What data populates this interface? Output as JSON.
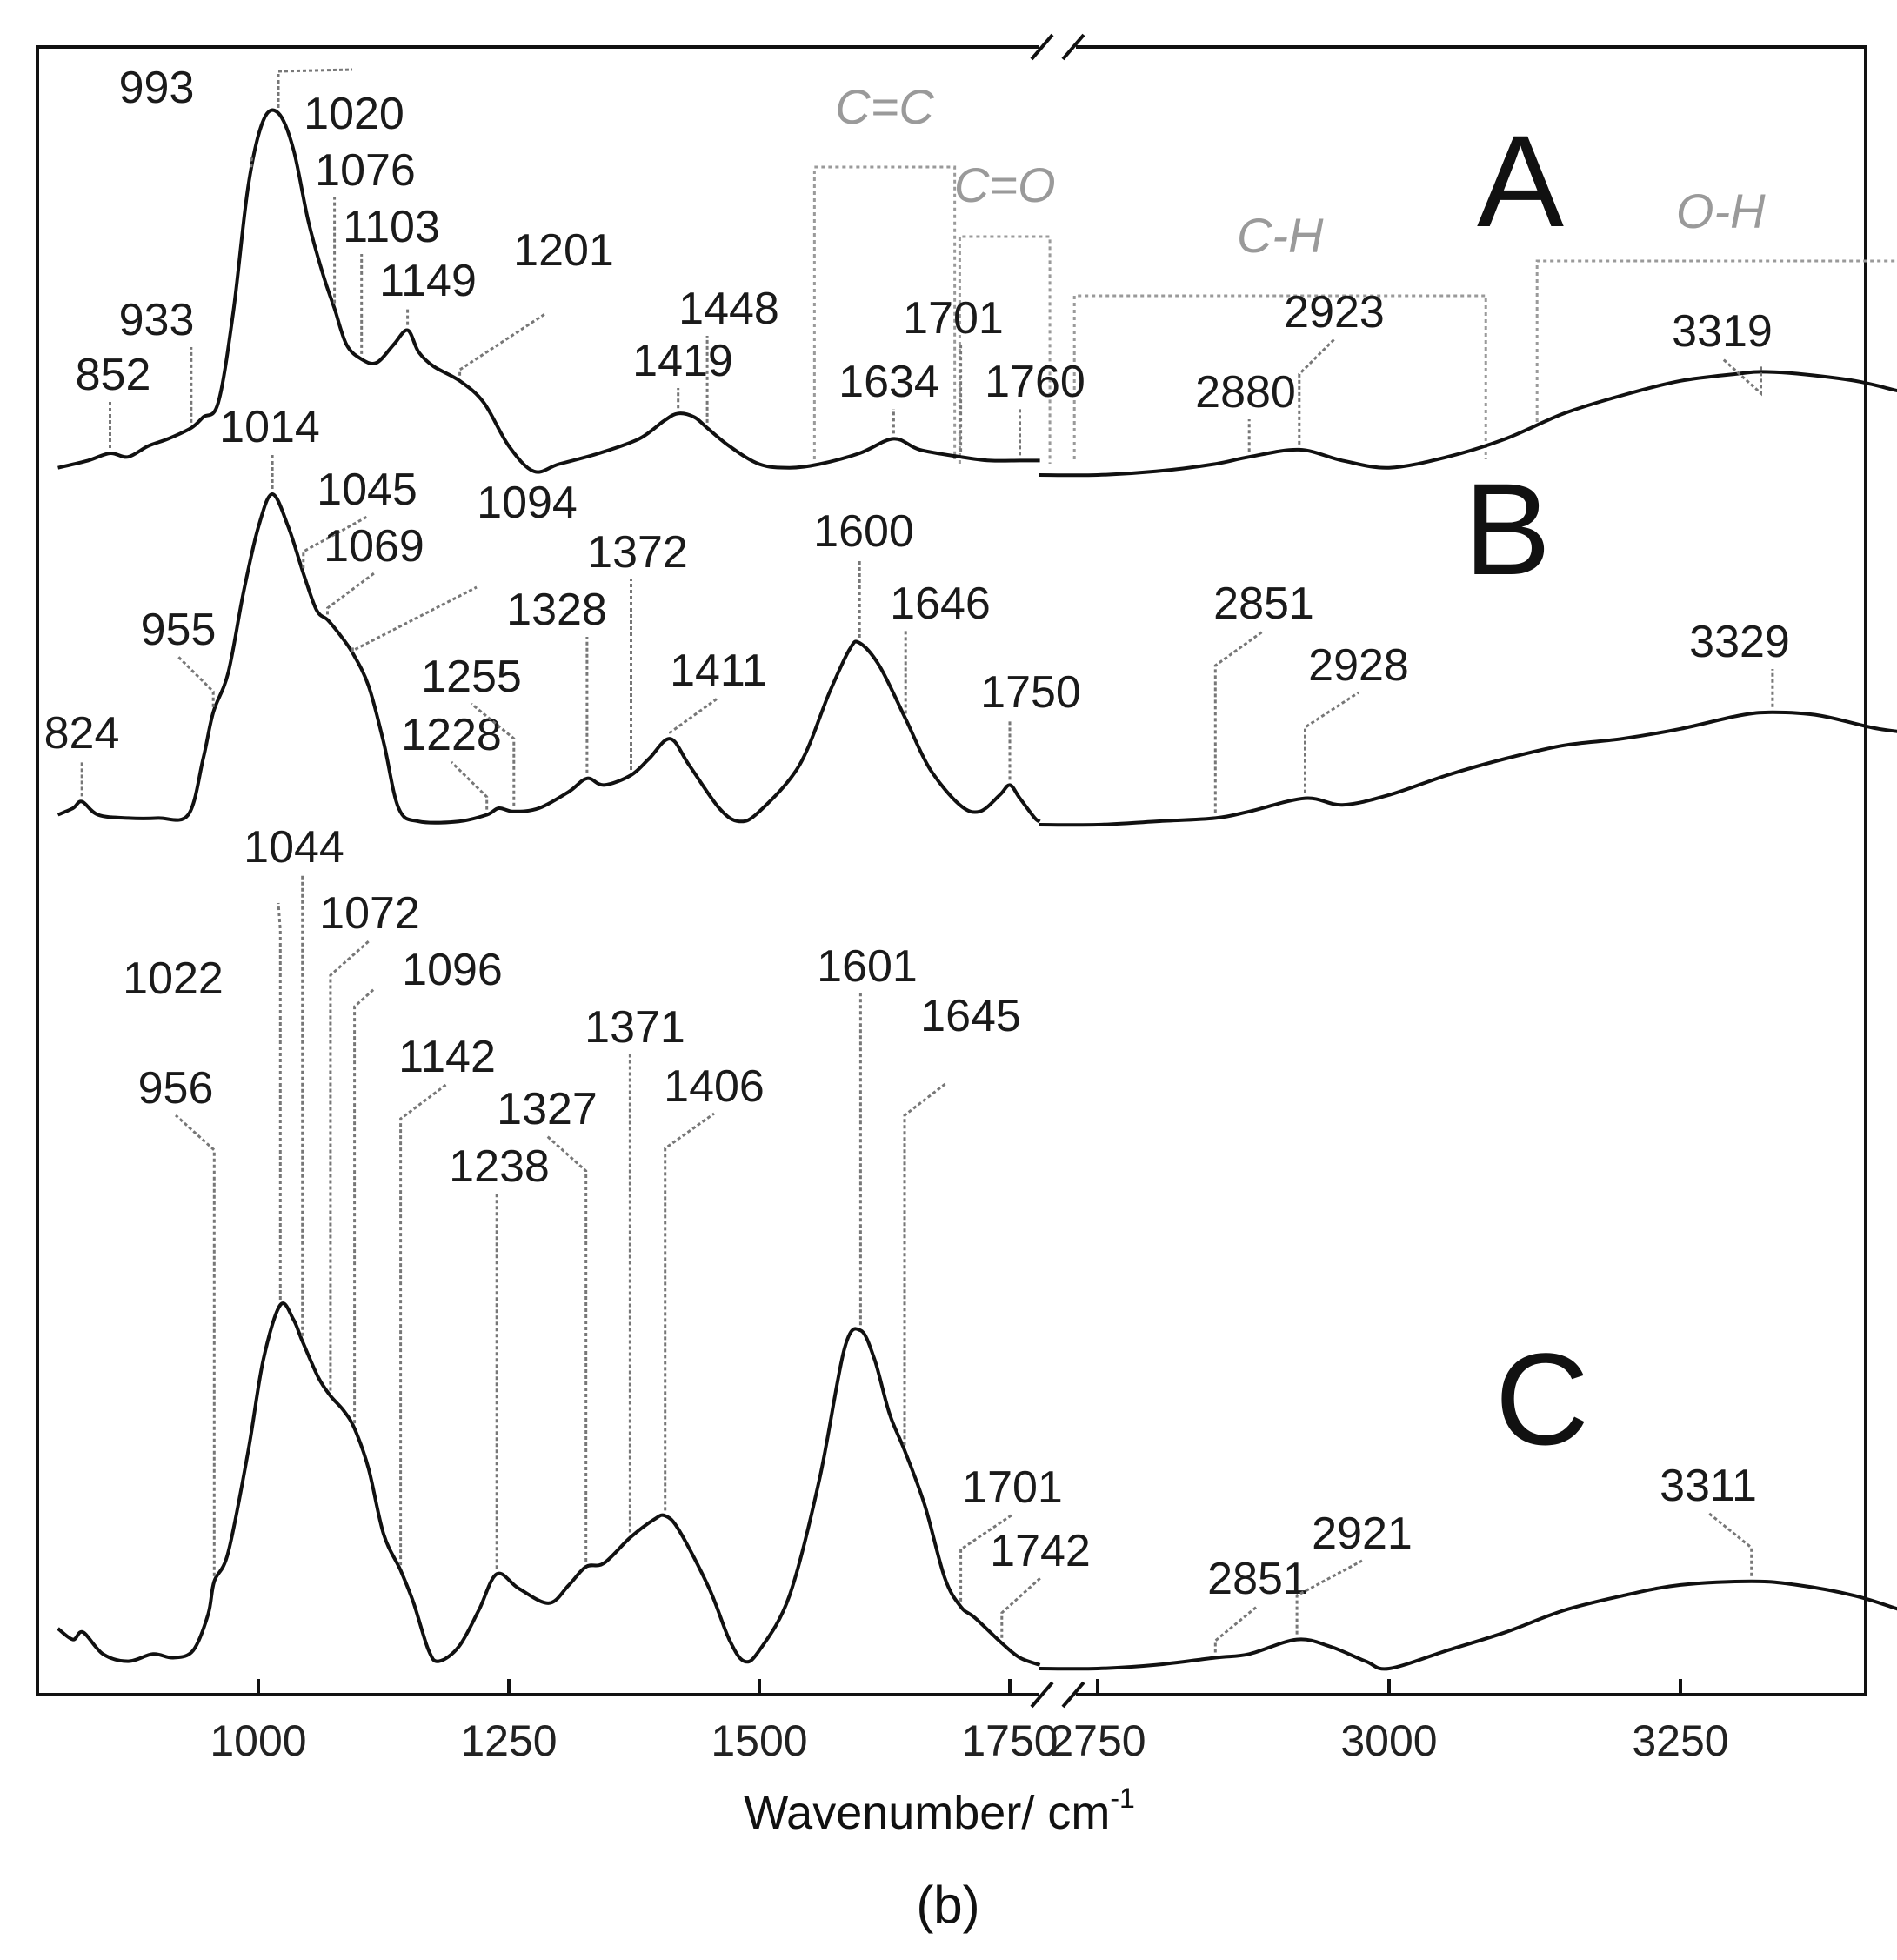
{
  "chart_data": {
    "type": "line",
    "xlabel": "Wavenumber/ cm",
    "xlabel_sup": "-1",
    "caption": "(b)",
    "axis_break": true,
    "xlim_left": [
      800,
      1780
    ],
    "xlim_right": [
      2700,
      3470
    ],
    "x_ticks_left": [
      1000,
      1250,
      1500,
      1750
    ],
    "x_ticks_right": [
      2750,
      3000,
      3250
    ],
    "grid": false,
    "groups": [
      {
        "label": "C=C",
        "x_start": 1555,
        "x_end": 1695
      },
      {
        "label": "C=O",
        "x_start": 1700,
        "x_end": 1790
      },
      {
        "label": "C-H",
        "x_start": 2730,
        "x_end": 3083
      },
      {
        "label": "O-H",
        "x_start": 3127,
        "x_end": 3442
      }
    ],
    "series": [
      {
        "name": "A",
        "peaks": [
          852,
          933,
          993,
          1020,
          1076,
          1103,
          1149,
          1201,
          1419,
          1448,
          1634,
          1701,
          1760,
          2880,
          2923,
          3319
        ],
        "left_points": [
          [
            800,
            0.02
          ],
          [
            830,
            0.04
          ],
          [
            852,
            0.06
          ],
          [
            870,
            0.05
          ],
          [
            890,
            0.08
          ],
          [
            910,
            0.1
          ],
          [
            933,
            0.13
          ],
          [
            945,
            0.16
          ],
          [
            960,
            0.2
          ],
          [
            975,
            0.45
          ],
          [
            990,
            0.8
          ],
          [
            1005,
            0.98
          ],
          [
            1020,
            1.0
          ],
          [
            1035,
            0.9
          ],
          [
            1050,
            0.7
          ],
          [
            1065,
            0.55
          ],
          [
            1076,
            0.46
          ],
          [
            1088,
            0.36
          ],
          [
            1103,
            0.32
          ],
          [
            1118,
            0.31
          ],
          [
            1135,
            0.36
          ],
          [
            1149,
            0.4
          ],
          [
            1160,
            0.34
          ],
          [
            1175,
            0.3
          ],
          [
            1201,
            0.26
          ],
          [
            1225,
            0.2
          ],
          [
            1250,
            0.08
          ],
          [
            1275,
            0.01
          ],
          [
            1300,
            0.03
          ],
          [
            1340,
            0.06
          ],
          [
            1380,
            0.1
          ],
          [
            1405,
            0.15
          ],
          [
            1419,
            0.17
          ],
          [
            1435,
            0.16
          ],
          [
            1448,
            0.13
          ],
          [
            1470,
            0.08
          ],
          [
            1500,
            0.03
          ],
          [
            1530,
            0.02
          ],
          [
            1560,
            0.03
          ],
          [
            1600,
            0.06
          ],
          [
            1634,
            0.1
          ],
          [
            1660,
            0.07
          ],
          [
            1701,
            0.05
          ],
          [
            1730,
            0.04
          ],
          [
            1760,
            0.04
          ],
          [
            1780,
            0.04
          ]
        ],
        "right_points": [
          [
            2700,
            0.0
          ],
          [
            2750,
            0.0
          ],
          [
            2800,
            0.01
          ],
          [
            2850,
            0.03
          ],
          [
            2880,
            0.05
          ],
          [
            2923,
            0.07
          ],
          [
            2960,
            0.04
          ],
          [
            3000,
            0.02
          ],
          [
            3050,
            0.05
          ],
          [
            3100,
            0.1
          ],
          [
            3150,
            0.17
          ],
          [
            3200,
            0.22
          ],
          [
            3250,
            0.26
          ],
          [
            3300,
            0.28
          ],
          [
            3319,
            0.285
          ],
          [
            3350,
            0.28
          ],
          [
            3400,
            0.26
          ],
          [
            3440,
            0.23
          ],
          [
            3470,
            0.21
          ]
        ]
      },
      {
        "name": "B",
        "peaks": [
          824,
          955,
          1014,
          1045,
          1069,
          1094,
          1228,
          1255,
          1328,
          1372,
          1411,
          1600,
          1646,
          1750,
          2851,
          2928,
          3329
        ],
        "left_points": [
          [
            800,
            0.03
          ],
          [
            815,
            0.05
          ],
          [
            824,
            0.07
          ],
          [
            840,
            0.03
          ],
          [
            870,
            0.02
          ],
          [
            900,
            0.02
          ],
          [
            930,
            0.03
          ],
          [
            945,
            0.2
          ],
          [
            955,
            0.34
          ],
          [
            970,
            0.46
          ],
          [
            985,
            0.7
          ],
          [
            1000,
            0.9
          ],
          [
            1014,
            1.0
          ],
          [
            1030,
            0.9
          ],
          [
            1045,
            0.76
          ],
          [
            1058,
            0.65
          ],
          [
            1069,
            0.62
          ],
          [
            1080,
            0.58
          ],
          [
            1094,
            0.52
          ],
          [
            1110,
            0.42
          ],
          [
            1125,
            0.25
          ],
          [
            1140,
            0.05
          ],
          [
            1160,
            0.01
          ],
          [
            1200,
            0.01
          ],
          [
            1228,
            0.03
          ],
          [
            1240,
            0.05
          ],
          [
            1255,
            0.04
          ],
          [
            1280,
            0.05
          ],
          [
            1310,
            0.1
          ],
          [
            1328,
            0.14
          ],
          [
            1345,
            0.12
          ],
          [
            1372,
            0.15
          ],
          [
            1390,
            0.2
          ],
          [
            1411,
            0.26
          ],
          [
            1430,
            0.18
          ],
          [
            1460,
            0.05
          ],
          [
            1480,
            0.01
          ],
          [
            1500,
            0.04
          ],
          [
            1540,
            0.18
          ],
          [
            1570,
            0.4
          ],
          [
            1590,
            0.53
          ],
          [
            1600,
            0.55
          ],
          [
            1620,
            0.48
          ],
          [
            1646,
            0.32
          ],
          [
            1670,
            0.17
          ],
          [
            1700,
            0.06
          ],
          [
            1720,
            0.04
          ],
          [
            1740,
            0.09
          ],
          [
            1750,
            0.12
          ],
          [
            1760,
            0.08
          ],
          [
            1775,
            0.02
          ],
          [
            1780,
            0.01
          ]
        ],
        "right_points": [
          [
            2700,
            0.0
          ],
          [
            2750,
            0.0
          ],
          [
            2800,
            0.01
          ],
          [
            2851,
            0.02
          ],
          [
            2880,
            0.04
          ],
          [
            2928,
            0.08
          ],
          [
            2960,
            0.06
          ],
          [
            3000,
            0.09
          ],
          [
            3050,
            0.15
          ],
          [
            3100,
            0.2
          ],
          [
            3150,
            0.24
          ],
          [
            3200,
            0.26
          ],
          [
            3250,
            0.29
          ],
          [
            3300,
            0.33
          ],
          [
            3329,
            0.34
          ],
          [
            3370,
            0.33
          ],
          [
            3420,
            0.29
          ],
          [
            3470,
            0.27
          ]
        ]
      },
      {
        "name": "C",
        "peaks": [
          956,
          1022,
          1044,
          1072,
          1096,
          1142,
          1238,
          1327,
          1371,
          1406,
          1601,
          1645,
          1701,
          1742,
          2851,
          2921,
          3311
        ],
        "left_points": [
          [
            800,
            0.11
          ],
          [
            815,
            0.08
          ],
          [
            825,
            0.1
          ],
          [
            845,
            0.04
          ],
          [
            870,
            0.02
          ],
          [
            895,
            0.04
          ],
          [
            915,
            0.03
          ],
          [
            935,
            0.05
          ],
          [
            950,
            0.15
          ],
          [
            956,
            0.24
          ],
          [
            970,
            0.32
          ],
          [
            990,
            0.6
          ],
          [
            1005,
            0.85
          ],
          [
            1022,
            1.0
          ],
          [
            1035,
            0.96
          ],
          [
            1044,
            0.9
          ],
          [
            1060,
            0.8
          ],
          [
            1072,
            0.75
          ],
          [
            1085,
            0.71
          ],
          [
            1096,
            0.66
          ],
          [
            1110,
            0.55
          ],
          [
            1125,
            0.37
          ],
          [
            1142,
            0.27
          ],
          [
            1155,
            0.18
          ],
          [
            1170,
            0.05
          ],
          [
            1180,
            0.02
          ],
          [
            1200,
            0.06
          ],
          [
            1220,
            0.16
          ],
          [
            1238,
            0.26
          ],
          [
            1260,
            0.22
          ],
          [
            1290,
            0.18
          ],
          [
            1310,
            0.23
          ],
          [
            1327,
            0.28
          ],
          [
            1345,
            0.29
          ],
          [
            1371,
            0.36
          ],
          [
            1395,
            0.41
          ],
          [
            1406,
            0.42
          ],
          [
            1420,
            0.38
          ],
          [
            1450,
            0.22
          ],
          [
            1470,
            0.08
          ],
          [
            1485,
            0.02
          ],
          [
            1500,
            0.05
          ],
          [
            1530,
            0.2
          ],
          [
            1560,
            0.52
          ],
          [
            1585,
            0.88
          ],
          [
            1601,
            0.93
          ],
          [
            1615,
            0.85
          ],
          [
            1630,
            0.7
          ],
          [
            1645,
            0.6
          ],
          [
            1665,
            0.45
          ],
          [
            1685,
            0.25
          ],
          [
            1701,
            0.17
          ],
          [
            1715,
            0.14
          ],
          [
            1742,
            0.07
          ],
          [
            1760,
            0.03
          ],
          [
            1780,
            0.01
          ]
        ],
        "right_points": [
          [
            2700,
            0.0
          ],
          [
            2750,
            0.0
          ],
          [
            2800,
            0.01
          ],
          [
            2851,
            0.03
          ],
          [
            2880,
            0.04
          ],
          [
            2921,
            0.08
          ],
          [
            2950,
            0.06
          ],
          [
            2980,
            0.02
          ],
          [
            3000,
            0.0
          ],
          [
            3050,
            0.05
          ],
          [
            3100,
            0.1
          ],
          [
            3150,
            0.16
          ],
          [
            3200,
            0.2
          ],
          [
            3250,
            0.23
          ],
          [
            3311,
            0.24
          ],
          [
            3350,
            0.23
          ],
          [
            3400,
            0.2
          ],
          [
            3440,
            0.16
          ],
          [
            3470,
            0.13
          ]
        ]
      }
    ],
    "peak_labels": [
      "852",
      "933",
      "993",
      "1020",
      "1076",
      "1103",
      "1149",
      "1201",
      "1419",
      "1448",
      "1634",
      "1701",
      "1760",
      "2880",
      "2923",
      "3319",
      "824",
      "955",
      "1014",
      "1045",
      "1069",
      "1094",
      "1228",
      "1255",
      "1328",
      "1372",
      "1411",
      "1600",
      "1646",
      "1750",
      "2851",
      "2928",
      "3329",
      "956",
      "1022",
      "1044",
      "1072",
      "1096",
      "1142",
      "1238",
      "1327",
      "1371",
      "1406",
      "1601",
      "1645",
      "1701",
      "1742",
      "2851",
      "2921",
      "3311"
    ]
  }
}
